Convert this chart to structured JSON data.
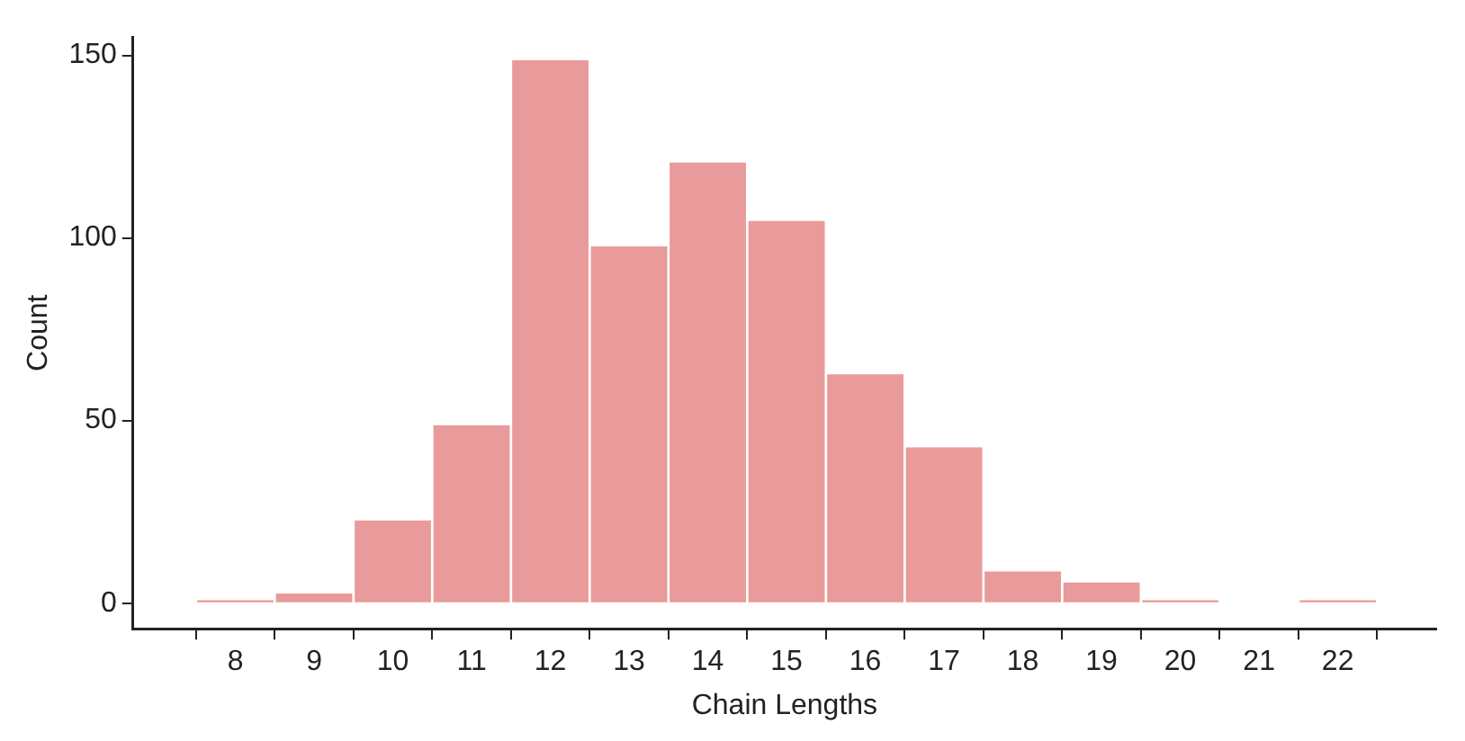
{
  "chart_data": {
    "type": "histogram",
    "xlabel": "Chain Lengths",
    "ylabel": "Count",
    "bins": [
      7.5,
      8.5,
      9.5,
      10.5,
      11.5,
      12.5,
      13.5,
      14.5,
      15.5,
      16.5,
      17.5,
      18.5,
      19.5,
      20.5,
      21.5,
      22.5
    ],
    "values": [
      1,
      3,
      23,
      49,
      149,
      98,
      121,
      105,
      63,
      43,
      9,
      6,
      1,
      0,
      1
    ],
    "color": "#e99a9a",
    "xlim": [
      6.7,
      23.25
    ],
    "xticks": [
      8,
      9,
      10,
      11,
      12,
      13,
      14,
      15,
      16,
      17,
      18,
      19,
      20,
      21,
      22
    ],
    "ylim": [
      -7,
      155
    ],
    "yticks": [
      0,
      50,
      100,
      150
    ],
    "grid": false,
    "legend": false
  }
}
